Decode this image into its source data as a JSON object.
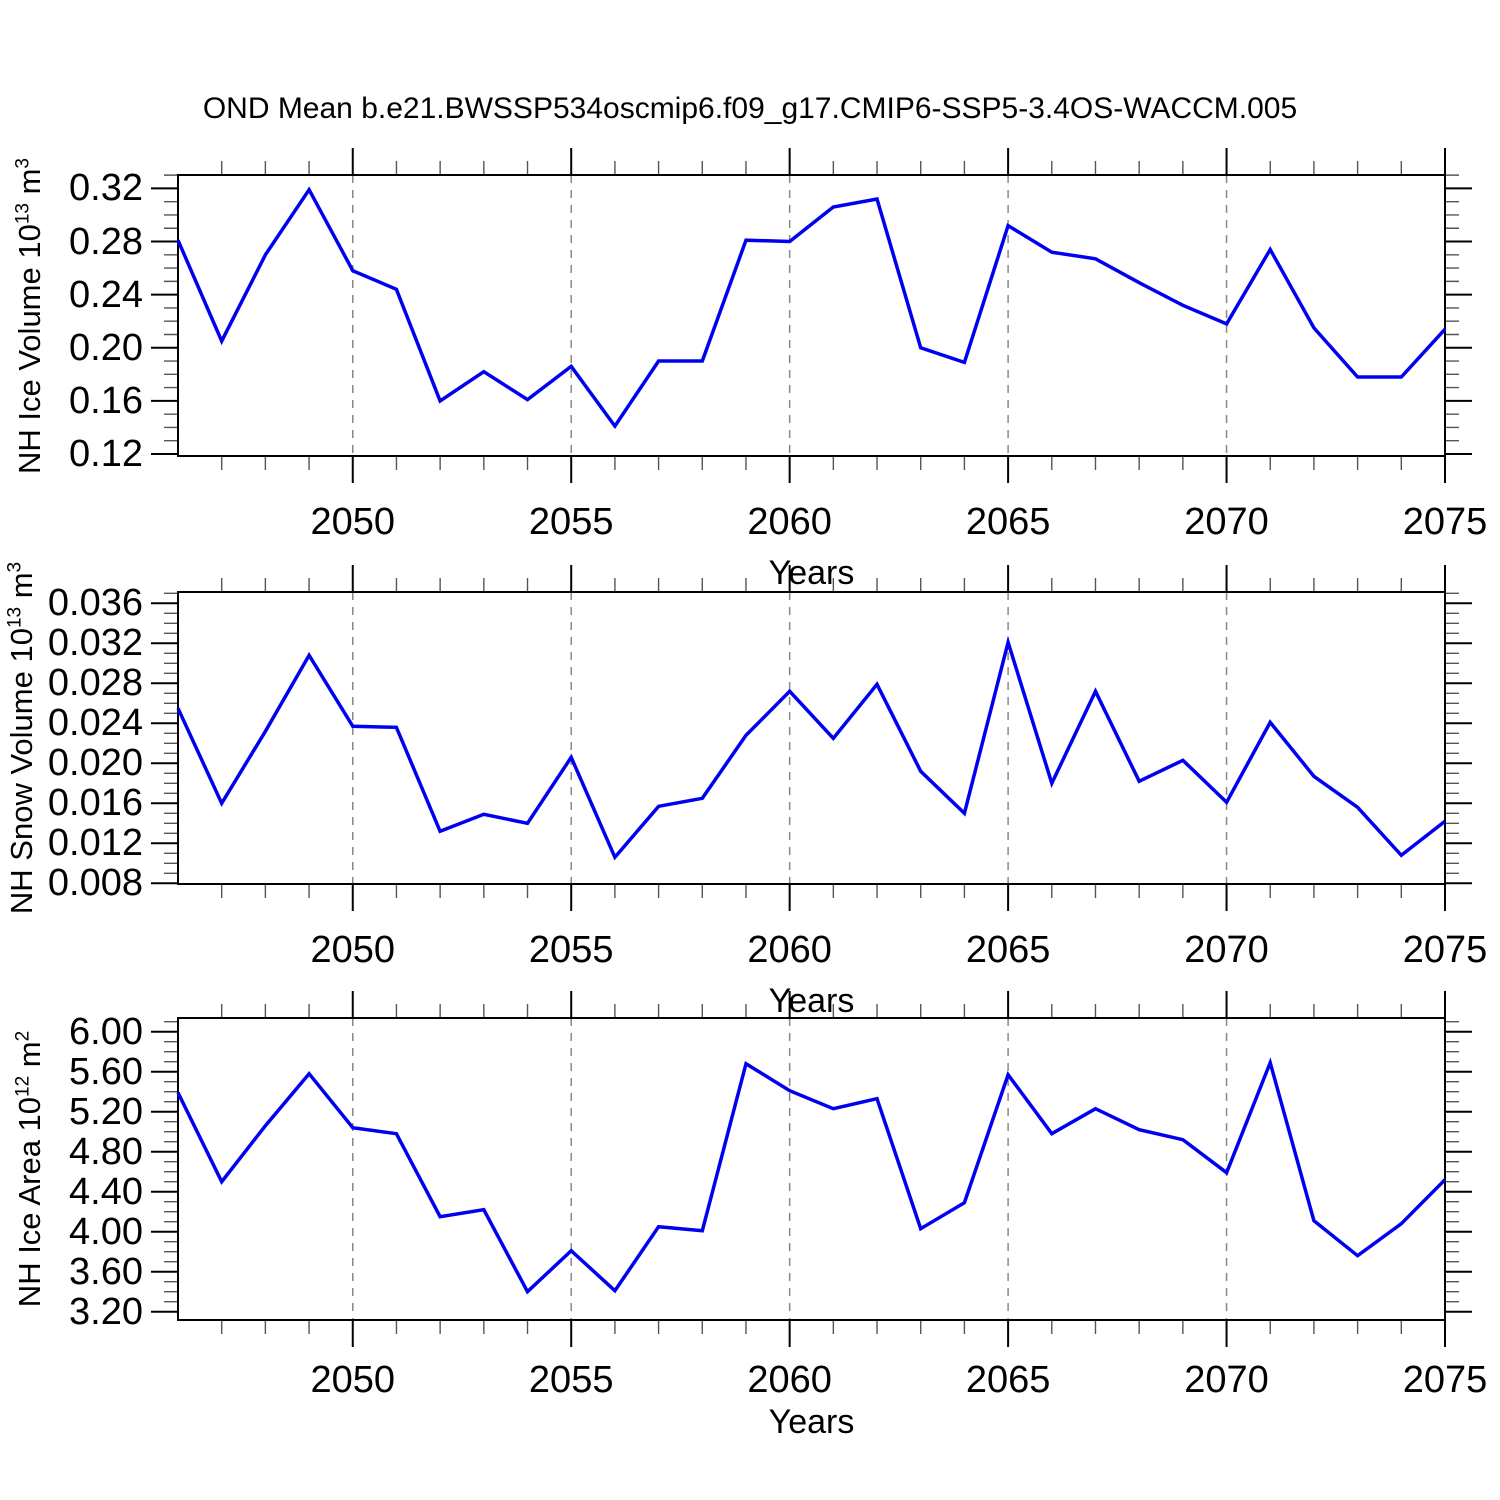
{
  "title": "OND Mean b.e21.BWSSP534oscmip6.f09_g17.CMIP6-SSP5-3.4OS-WACCM.005",
  "colors": {
    "line": "#0000f0",
    "axis": "#000000",
    "minor_tick": "#555555",
    "grid": "#888888",
    "background": "#ffffff"
  },
  "x_axis": {
    "label": "Years",
    "min": 2046,
    "max": 2075,
    "major_ticks": [
      2050,
      2055,
      2060,
      2065,
      2070,
      2075
    ],
    "tick_labels": [
      "2050",
      "2055",
      "2060",
      "2065",
      "2070",
      "2075"
    ],
    "minor_step": 1,
    "grid_years": [
      2050,
      2055,
      2060,
      2065,
      2070
    ]
  },
  "chart_data": [
    {
      "type": "line",
      "series_name": "NH Ice Volume",
      "ylabel": "NH Ice Volume 10^13 m^3",
      "ylabel_parts": {
        "prefix": "NH Ice Volume 10",
        "sup1": "13",
        "mid": " m",
        "sup2": "3"
      },
      "xlabel": "Years",
      "x": [
        2046,
        2047,
        2048,
        2049,
        2050,
        2051,
        2052,
        2053,
        2054,
        2055,
        2056,
        2057,
        2058,
        2059,
        2060,
        2061,
        2062,
        2063,
        2064,
        2065,
        2066,
        2067,
        2068,
        2069,
        2070,
        2071,
        2072,
        2073,
        2074,
        2075
      ],
      "values": [
        0.281,
        0.205,
        0.27,
        0.319,
        0.258,
        0.244,
        0.16,
        0.182,
        0.161,
        0.186,
        0.141,
        0.19,
        0.19,
        0.281,
        0.28,
        0.306,
        0.312,
        0.2,
        0.189,
        0.292,
        0.272,
        0.267,
        0.249,
        0.232,
        0.218,
        0.274,
        0.215,
        0.178,
        0.178,
        0.214
      ],
      "ylim": [
        0.1185,
        0.3301
      ],
      "ytick_values": [
        0.12,
        0.16,
        0.2,
        0.24,
        0.28,
        0.32
      ],
      "ytick_labels": [
        "0.12",
        "0.16",
        "0.20",
        "0.24",
        "0.28",
        "0.32"
      ],
      "y_minor_step": 0.01,
      "grid": "vertical-dashed"
    },
    {
      "type": "line",
      "series_name": "NH Snow Volume",
      "ylabel": "NH Snow Volume 10^13 m^3",
      "ylabel_parts": {
        "prefix": "NH Snow Volume 10",
        "sup1": "13",
        "mid": " m",
        "sup2": "3"
      },
      "xlabel": "Years",
      "x": [
        2046,
        2047,
        2048,
        2049,
        2050,
        2051,
        2052,
        2053,
        2054,
        2055,
        2056,
        2057,
        2058,
        2059,
        2060,
        2061,
        2062,
        2063,
        2064,
        2065,
        2066,
        2067,
        2068,
        2069,
        2070,
        2071,
        2072,
        2073,
        2074,
        2075
      ],
      "values": [
        0.0255,
        0.016,
        0.0232,
        0.0308,
        0.0237,
        0.0236,
        0.0132,
        0.0149,
        0.014,
        0.0206,
        0.0106,
        0.0157,
        0.0165,
        0.0228,
        0.0272,
        0.0225,
        0.0279,
        0.0192,
        0.015,
        0.0321,
        0.018,
        0.0272,
        0.0182,
        0.0203,
        0.0161,
        0.0241,
        0.0187,
        0.0156,
        0.0108,
        0.0142
      ],
      "ylim": [
        0.00793,
        0.03713
      ],
      "ytick_values": [
        0.008,
        0.012,
        0.016,
        0.02,
        0.024,
        0.028,
        0.032,
        0.036
      ],
      "ytick_labels": [
        "0.008",
        "0.012",
        "0.016",
        "0.020",
        "0.024",
        "0.028",
        "0.032",
        "0.036"
      ],
      "y_minor_step": 0.001,
      "grid": "vertical-dashed"
    },
    {
      "type": "line",
      "series_name": "NH Ice Area",
      "ylabel": "NH Ice Area 10^12 m^2",
      "ylabel_parts": {
        "prefix": "NH Ice Area 10",
        "sup1": "12",
        "mid": " m",
        "sup2": "2"
      },
      "xlabel": "Years",
      "x": [
        2046,
        2047,
        2048,
        2049,
        2050,
        2051,
        2052,
        2053,
        2054,
        2055,
        2056,
        2057,
        2058,
        2059,
        2060,
        2061,
        2062,
        2063,
        2064,
        2065,
        2066,
        2067,
        2068,
        2069,
        2070,
        2071,
        2072,
        2073,
        2074,
        2075
      ],
      "values": [
        5.39,
        4.5,
        5.06,
        5.58,
        5.04,
        4.98,
        4.15,
        4.22,
        3.4,
        3.81,
        3.41,
        4.05,
        4.01,
        5.68,
        5.41,
        5.23,
        5.33,
        4.03,
        4.29,
        5.57,
        4.98,
        5.23,
        5.02,
        4.92,
        4.59,
        5.69,
        4.11,
        3.76,
        4.08,
        4.52
      ],
      "ylim": [
        3.117,
        6.137
      ],
      "ytick_values": [
        3.2,
        3.6,
        4.0,
        4.4,
        4.8,
        5.2,
        5.6,
        6.0
      ],
      "ytick_labels": [
        "3.20",
        "3.60",
        "4.00",
        "4.40",
        "4.80",
        "5.20",
        "5.60",
        "6.00"
      ],
      "y_minor_step": 0.1,
      "grid": "vertical-dashed"
    }
  ]
}
